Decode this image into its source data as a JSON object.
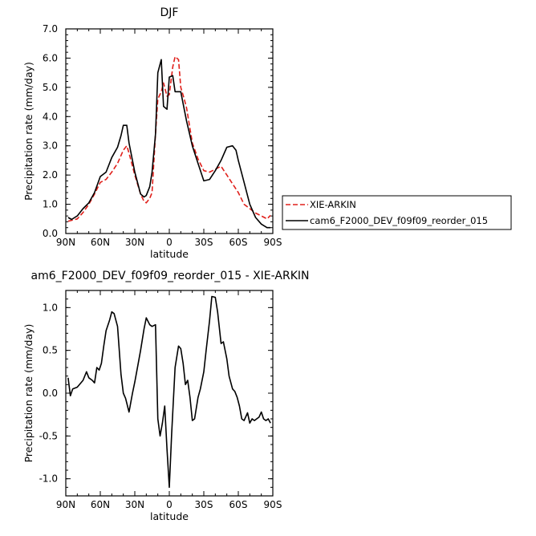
{
  "chart_data": [
    {
      "type": "line",
      "title": "DJF",
      "xlabel": "latitude",
      "ylabel": "Precipitation rate (mm/day)",
      "xlim": [
        90,
        -90
      ],
      "ylim": [
        0,
        7
      ],
      "x_ticks": [
        90,
        60,
        30,
        0,
        -30,
        -60,
        -90
      ],
      "x_tick_labels": [
        "90N",
        "60N",
        "30N",
        "0",
        "30S",
        "60S",
        "90S"
      ],
      "y_ticks": [
        0,
        1,
        2,
        3,
        4,
        5,
        6,
        7
      ],
      "y_tick_labels": [
        "0.0",
        "1.0",
        "2.0",
        "3.0",
        "4.0",
        "5.0",
        "6.0",
        "7.0"
      ],
      "legend": {
        "placement": "right",
        "entries": [
          "XIE-ARKIN",
          "cam6_F2000_DEV_f09f09_reorder_015"
        ]
      },
      "series": [
        {
          "name": "XIE-ARKIN",
          "color": "#e0201b",
          "dash": "dashed",
          "x": [
            88,
            85,
            80,
            75,
            70,
            65,
            60,
            55,
            50,
            45,
            40,
            37,
            35,
            30,
            25,
            22,
            20,
            17,
            15,
            12,
            10,
            7,
            5,
            2,
            0,
            -3,
            -5,
            -8,
            -10,
            -13,
            -15,
            -20,
            -25,
            -30,
            -35,
            -40,
            -45,
            -50,
            -55,
            -60,
            -65,
            -70,
            -75,
            -80,
            -85,
            -88
          ],
          "y": [
            0.42,
            0.45,
            0.5,
            0.72,
            1.0,
            1.35,
            1.75,
            1.85,
            2.1,
            2.4,
            2.85,
            3.0,
            2.75,
            2.0,
            1.35,
            1.1,
            1.05,
            1.2,
            1.4,
            3.4,
            4.6,
            4.85,
            5.15,
            4.7,
            4.75,
            5.7,
            6.05,
            5.95,
            5.0,
            4.6,
            4.3,
            3.1,
            2.55,
            2.15,
            2.1,
            2.2,
            2.3,
            2.0,
            1.7,
            1.4,
            1.0,
            0.85,
            0.7,
            0.6,
            0.5,
            0.62
          ]
        },
        {
          "name": "cam6_F2000_DEV_f09f09_reorder_015",
          "color": "#000000",
          "dash": "solid",
          "x": [
            88,
            85,
            80,
            75,
            70,
            65,
            60,
            55,
            50,
            45,
            42,
            40,
            37,
            35,
            30,
            25,
            22,
            20,
            17,
            15,
            12,
            10,
            7,
            5,
            2,
            0,
            -3,
            -5,
            -8,
            -10,
            -13,
            -15,
            -20,
            -25,
            -30,
            -35,
            -40,
            -45,
            -50,
            -55,
            -58,
            -60,
            -65,
            -70,
            -75,
            -80,
            -85,
            -88
          ],
          "y": [
            0.55,
            0.48,
            0.6,
            0.85,
            1.05,
            1.4,
            1.95,
            2.1,
            2.6,
            2.95,
            3.35,
            3.7,
            3.7,
            3.1,
            2.1,
            1.35,
            1.25,
            1.3,
            1.6,
            2.1,
            3.4,
            5.5,
            5.95,
            4.35,
            4.25,
            5.35,
            5.4,
            4.85,
            4.85,
            4.85,
            4.25,
            3.85,
            3.0,
            2.4,
            1.8,
            1.85,
            2.15,
            2.5,
            2.95,
            3.0,
            2.85,
            2.5,
            1.75,
            1.0,
            0.55,
            0.32,
            0.2,
            0.2
          ]
        }
      ]
    },
    {
      "type": "line",
      "title": "am6_F2000_DEV_f09f09_reorder_015 - XIE-ARKIN",
      "xlabel": "latitude",
      "ylabel": "Precipitation rate (mm/day)",
      "xlim": [
        90,
        -90
      ],
      "ylim": [
        -1.2,
        1.2
      ],
      "x_ticks": [
        90,
        60,
        30,
        0,
        -30,
        -60,
        -90
      ],
      "x_tick_labels": [
        "90N",
        "60N",
        "30N",
        "0",
        "30S",
        "60S",
        "90S"
      ],
      "y_ticks": [
        -1.0,
        -0.5,
        0.0,
        0.5,
        1.0
      ],
      "y_tick_labels": [
        "-1.0",
        "-0.5",
        "0.0",
        "0.5",
        "1.0"
      ],
      "series": [
        {
          "color": "#000000",
          "dash": "solid",
          "x": [
            88,
            86,
            84,
            80,
            75,
            72,
            70,
            67,
            65,
            63,
            61,
            59,
            57,
            55,
            52,
            50,
            48,
            45,
            42,
            40,
            38,
            35,
            32,
            30,
            27,
            25,
            22,
            20,
            17,
            15,
            12,
            10,
            8,
            6,
            4,
            2,
            0,
            -2,
            -5,
            -8,
            -10,
            -12,
            -14,
            -16,
            -18,
            -20,
            -22,
            -25,
            -27,
            -30,
            -32,
            -35,
            -37,
            -40,
            -42,
            -45,
            -47,
            -50,
            -52,
            -55,
            -57,
            -59,
            -61,
            -63,
            -65,
            -68,
            -70,
            -72,
            -74,
            -76,
            -78,
            -80,
            -82,
            -84,
            -86,
            -88
          ],
          "y": [
            0.18,
            -0.03,
            0.05,
            0.07,
            0.15,
            0.25,
            0.18,
            0.15,
            0.12,
            0.3,
            0.27,
            0.35,
            0.55,
            0.73,
            0.85,
            0.95,
            0.93,
            0.78,
            0.22,
            0.0,
            -0.06,
            -0.22,
            0.0,
            0.13,
            0.35,
            0.5,
            0.75,
            0.88,
            0.8,
            0.78,
            0.8,
            -0.3,
            -0.5,
            -0.35,
            -0.15,
            -0.65,
            -1.1,
            -0.48,
            0.3,
            0.55,
            0.52,
            0.35,
            0.1,
            0.15,
            -0.05,
            -0.32,
            -0.3,
            -0.05,
            0.05,
            0.25,
            0.5,
            0.85,
            1.13,
            1.12,
            0.95,
            0.58,
            0.6,
            0.4,
            0.2,
            0.05,
            0.02,
            -0.05,
            -0.15,
            -0.3,
            -0.32,
            -0.23,
            -0.35,
            -0.3,
            -0.32,
            -0.3,
            -0.28,
            -0.22,
            -0.3,
            -0.32,
            -0.3,
            -0.35
          ]
        }
      ]
    }
  ]
}
